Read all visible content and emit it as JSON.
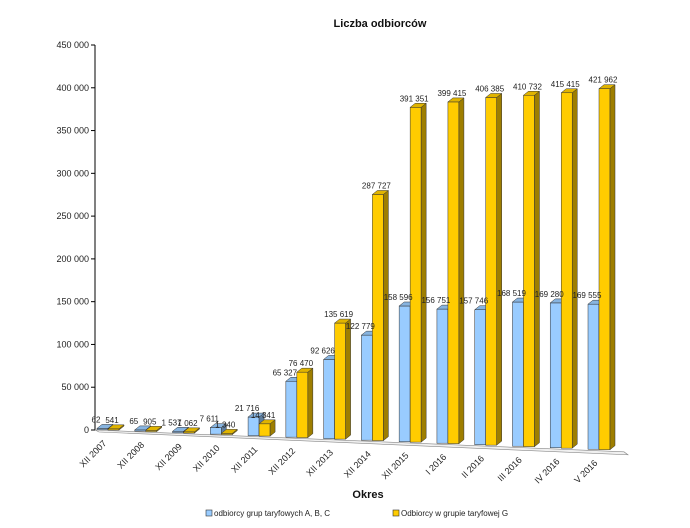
{
  "chart_data": {
    "type": "bar",
    "title": "Liczba odbiorców",
    "xlabel": "Okres",
    "ylabel": "",
    "ylim": [
      0,
      450000
    ],
    "yticks": [
      "0",
      "50 000",
      "100 000",
      "150 000",
      "200 000",
      "250 000",
      "300 000",
      "350 000",
      "400 000",
      "450 000"
    ],
    "categories": [
      "XII 2007",
      "XII 2008",
      "XII 2009",
      "XII 2010",
      "XII 2011",
      "XII 2012",
      "XII 2013",
      "XII 2014",
      "XII 2015",
      "I 2016",
      "II 2016",
      "III 2016",
      "IV 2016",
      "V 2016"
    ],
    "series": [
      {
        "name": "odbiorcy grup taryfowych A, B, C",
        "color": "#99ccff",
        "values": [
          62,
          65,
          1537,
          7611,
          21716,
          65327,
          92626,
          122779,
          158596,
          156751,
          157746,
          168519,
          169280,
          169555
        ],
        "labels": [
          "62",
          "65",
          "1 537",
          "7 611",
          "21 716",
          "65 327",
          "92 626",
          "122 779",
          "158 596",
          "156 751",
          "157 746",
          "168 519",
          "169 280",
          "169 555"
        ]
      },
      {
        "name": "Odbiorcy w grupie taryfowej G",
        "color": "#ffcc00",
        "values": [
          541,
          905,
          1062,
          1340,
          14341,
          76470,
          135619,
          287727,
          391351,
          399415,
          406385,
          410732,
          415415,
          421962
        ],
        "labels": [
          "541",
          "905",
          "1 062",
          "1 340",
          "14 341",
          "76 470",
          "135 619",
          "287 727",
          "391 351",
          "399 415",
          "406 385",
          "410 732",
          "415 415",
          "421 962"
        ]
      }
    ],
    "legend_position": "bottom",
    "grid": false
  }
}
